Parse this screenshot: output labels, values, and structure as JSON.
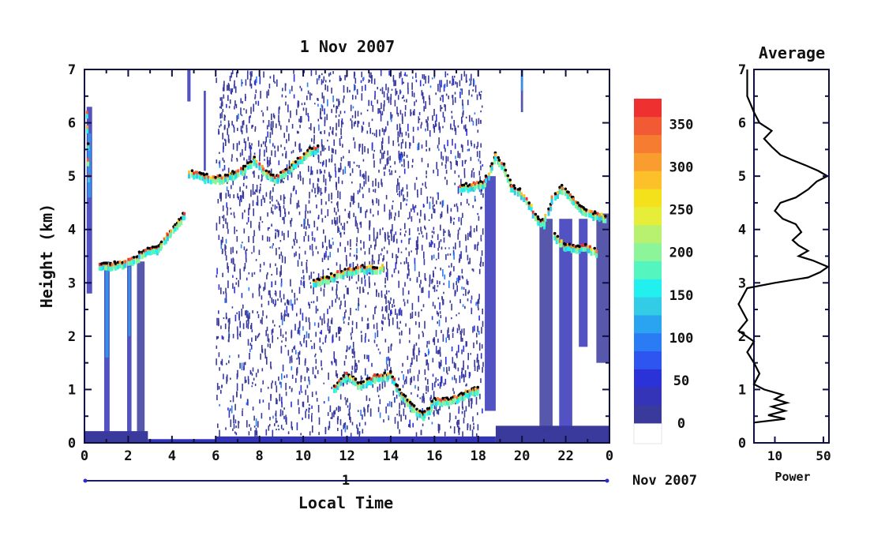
{
  "chart_data": [
    {
      "type": "heatmap",
      "title": "1 Nov 2007",
      "xlabel": "Local Time",
      "ylabel": "Height (km)",
      "x_ticks": [
        "0",
        "2",
        "4",
        "6",
        "8",
        "10",
        "12",
        "14",
        "16",
        "18",
        "20",
        "22",
        "0"
      ],
      "y_ticks": [
        "0",
        "1",
        "2",
        "3",
        "4",
        "5",
        "6",
        "7"
      ],
      "xlim": [
        0,
        24
      ],
      "ylim": [
        0,
        7
      ],
      "date_bar": {
        "day": "1",
        "month_label": "Nov 2007"
      },
      "colorbar": {
        "ticks": [
          "0",
          "50",
          "100",
          "150",
          "200",
          "250",
          "300",
          "350"
        ],
        "range": [
          0,
          380
        ],
        "colors": [
          "#3a3a9c",
          "#3434b8",
          "#2a32d8",
          "#2f55f0",
          "#2a7cf5",
          "#2aa3f0",
          "#33cce6",
          "#22f0ee",
          "#55f5c0",
          "#8cf59a",
          "#b8f070",
          "#e6ee3a",
          "#f5e01c",
          "#fcc02a",
          "#f99d2e",
          "#f57c30",
          "#f25a35",
          "#ee3030"
        ]
      },
      "features": {
        "layer_traces": [
          {
            "name": "layer-a",
            "points": [
              [
                0.7,
                3.35
              ],
              [
                1.2,
                3.35
              ],
              [
                1.8,
                3.4
              ],
              [
                2.2,
                3.45
              ],
              [
                2.8,
                3.6
              ],
              [
                3.3,
                3.65
              ],
              [
                3.8,
                3.9
              ],
              [
                4.3,
                4.15
              ],
              [
                4.6,
                4.3
              ]
            ]
          },
          {
            "name": "layer-b",
            "points": [
              [
                4.8,
                5.1
              ],
              [
                5.5,
                5.0
              ],
              [
                6.2,
                4.98
              ],
              [
                6.8,
                5.05
              ],
              [
                7.3,
                5.15
              ],
              [
                7.8,
                5.35
              ],
              [
                8.2,
                5.1
              ],
              [
                8.8,
                4.98
              ],
              [
                9.5,
                5.2
              ],
              [
                10.3,
                5.5
              ],
              [
                10.7,
                5.55
              ]
            ]
          },
          {
            "name": "layer-c",
            "points": [
              [
                10.5,
                3.05
              ],
              [
                11.1,
                3.1
              ],
              [
                11.6,
                3.18
              ],
              [
                12.2,
                3.25
              ],
              [
                12.8,
                3.3
              ],
              [
                13.2,
                3.28
              ],
              [
                13.6,
                3.3
              ]
            ]
          },
          {
            "name": "layer-d",
            "points": [
              [
                11.4,
                1.05
              ],
              [
                12.0,
                1.3
              ],
              [
                12.6,
                1.1
              ],
              [
                13.3,
                1.25
              ],
              [
                14.0,
                1.3
              ],
              [
                14.5,
                0.9
              ],
              [
                15.0,
                0.7
              ],
              [
                15.5,
                0.5
              ],
              [
                16.0,
                0.8
              ],
              [
                16.5,
                0.8
              ],
              [
                17.2,
                0.9
              ],
              [
                17.8,
                1.0
              ],
              [
                18.0,
                1.0
              ]
            ]
          },
          {
            "name": "layer-e",
            "points": [
              [
                17.2,
                4.8
              ],
              [
                17.8,
                4.85
              ],
              [
                18.3,
                4.9
              ],
              [
                18.8,
                5.4
              ],
              [
                19.2,
                5.2
              ],
              [
                19.5,
                4.8
              ],
              [
                19.9,
                4.75
              ],
              [
                20.3,
                4.5
              ],
              [
                20.7,
                4.2
              ],
              [
                21.0,
                4.15
              ],
              [
                21.4,
                4.6
              ],
              [
                21.8,
                4.8
              ],
              [
                22.3,
                4.6
              ],
              [
                22.8,
                4.4
              ],
              [
                23.3,
                4.3
              ],
              [
                23.8,
                4.25
              ]
            ]
          },
          {
            "name": "layer-f",
            "points": [
              [
                21.5,
                3.9
              ],
              [
                22.0,
                3.7
              ],
              [
                22.5,
                3.65
              ],
              [
                23.0,
                3.7
              ],
              [
                23.4,
                3.6
              ]
            ]
          },
          {
            "name": "layer-g",
            "points": [
              [
                0.1,
                6.2
              ],
              [
                0.2,
                5.0
              ]
            ]
          }
        ],
        "noise_window_hours": [
          6.0,
          18.2
        ]
      }
    },
    {
      "type": "line",
      "title": "Average",
      "xlabel": "Power",
      "ylabel": "",
      "x_ticks": [
        "10",
        "50"
      ],
      "y_ticks": [
        "0",
        "1",
        "2",
        "3",
        "4",
        "5",
        "6",
        "7"
      ],
      "ylim": [
        0,
        7
      ],
      "profile": [
        [
          0.38,
          5
        ],
        [
          0.45,
          14
        ],
        [
          0.52,
          8
        ],
        [
          0.6,
          14
        ],
        [
          0.68,
          9
        ],
        [
          0.75,
          15
        ],
        [
          0.82,
          10
        ],
        [
          0.9,
          13
        ],
        [
          1.0,
          7
        ],
        [
          1.1,
          5
        ],
        [
          1.3,
          6
        ],
        [
          1.5,
          5
        ],
        [
          1.7,
          4
        ],
        [
          1.9,
          5
        ],
        [
          2.1,
          3
        ],
        [
          2.3,
          4
        ],
        [
          2.6,
          3
        ],
        [
          2.9,
          4
        ],
        [
          3.0,
          10
        ],
        [
          3.1,
          30
        ],
        [
          3.2,
          45
        ],
        [
          3.3,
          58
        ],
        [
          3.42,
          35
        ],
        [
          3.5,
          22
        ],
        [
          3.6,
          30
        ],
        [
          3.7,
          22
        ],
        [
          3.8,
          18
        ],
        [
          3.95,
          24
        ],
        [
          4.1,
          20
        ],
        [
          4.2,
          13
        ],
        [
          4.35,
          10
        ],
        [
          4.5,
          12
        ],
        [
          4.6,
          20
        ],
        [
          4.75,
          30
        ],
        [
          4.9,
          40
        ],
        [
          5.0,
          57
        ],
        [
          5.1,
          42
        ],
        [
          5.2,
          28
        ],
        [
          5.3,
          18
        ],
        [
          5.4,
          12
        ],
        [
          5.55,
          9
        ],
        [
          5.7,
          7
        ],
        [
          5.85,
          9
        ],
        [
          6.0,
          6
        ],
        [
          6.2,
          5
        ],
        [
          6.5,
          4
        ],
        [
          7.0,
          4
        ]
      ]
    }
  ]
}
